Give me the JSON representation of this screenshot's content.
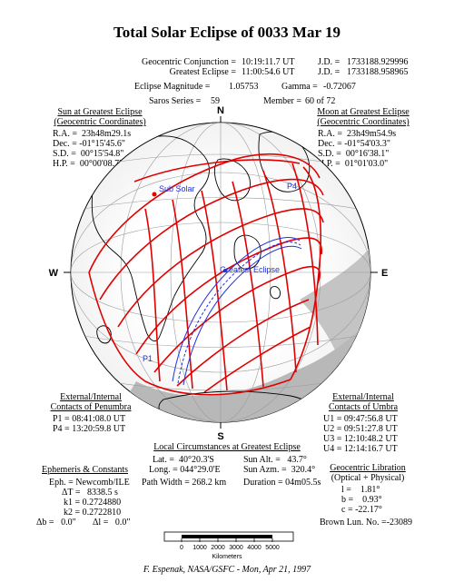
{
  "title": "Total Solar Eclipse of 0033 Mar 19",
  "summary": {
    "geocentric_conjunction_label": "Geocentric Conjunction =",
    "geocentric_conjunction_value": "10:19:11.7 UT",
    "greatest_eclipse_label": "Greatest Eclipse =",
    "greatest_eclipse_value": "11:00:54.6 UT",
    "jd_label": "J.D. =",
    "jd1_value": "1733188.929996",
    "jd2_value": "1733188.958965",
    "magnitude_label": "Eclipse Magnitude =",
    "magnitude_value": "1.05753",
    "gamma_label": "Gamma =",
    "gamma_value": "-0.72067",
    "saros_label": "Saros Series =",
    "saros_value": "59",
    "member_label": "Member =",
    "member_value": "60 of 72"
  },
  "sun": {
    "heading1": "Sun at Greatest Eclipse",
    "heading2": "(Geocentric Coordinates)",
    "ra": "R.A. =  23h48m29.1s",
    "dec": "Dec. = -01°15'45.6\"",
    "sd": "S.D. =  00°15'54.8\"",
    "hp": "H.P. =  00°00'08.7\""
  },
  "moon": {
    "heading1": "Moon at Greatest Eclipse",
    "heading2": "(Geocentric Coordinates)",
    "ra": "R.A. =  23h49m54.9s",
    "dec": "Dec. = -01°54'03.3\"",
    "sd": "S.D. =  00°16'38.1\"",
    "hp": "H.P. =  01°01'03.0\""
  },
  "globe": {
    "north": "N",
    "south": "S",
    "west": "W",
    "east": "E",
    "sub_solar": "Sub Solar",
    "greatest_eclipse": "Greatest Eclipse",
    "p1": "P1",
    "p4": "P4"
  },
  "penumbra": {
    "heading1": "External/Internal",
    "heading2": "Contacts of Penumbra",
    "p1": "P1 = 08:41:08.0 UT",
    "p4": "P4 = 13:20:59.8 UT"
  },
  "umbra": {
    "heading1": "External/Internal",
    "heading2": "Contacts of Umbra",
    "u1": "U1 = 09:47:56.8 UT",
    "u2": "U2 = 09:51:27.8 UT",
    "u3": "U3 = 12:10:48.2 UT",
    "u4": "U4 = 12:14:16.7 UT"
  },
  "local": {
    "heading": "Local Circumstances at Greatest Eclipse",
    "lat": "Lat. =  40°20.3'S",
    "long": "Long. = 044°29.0'E",
    "sun_alt": "Sun Alt. =   43.7°",
    "sun_azm": "Sun Azm. =  320.4°",
    "path_width": "Path Width = 268.2 km",
    "duration": "Duration = 04m05.5s"
  },
  "ephemeris": {
    "heading": "Ephemeris & Constants",
    "eph": "Eph. = Newcomb/ILE",
    "dt": "ΔT =   8338.5 s",
    "k1": "k1 = 0.2724880",
    "k2": "k2 = 0.2722810",
    "db": "Δb =   0.0\"",
    "dl": "Δl =   0.0\""
  },
  "libration": {
    "heading1": "Geocentric Libration",
    "heading2": "(Optical + Physical)",
    "l": "l =    1.81°",
    "b": "b =    0.93°",
    "c": "c = -22.17°",
    "brown": "Brown Lun. No. =-23089"
  },
  "scale": {
    "ticks": [
      "0",
      "1000",
      "2000",
      "3000",
      "4000",
      "5000"
    ],
    "unit": "Kilometers"
  },
  "credit": "F. Espenak, NASA/GSFC - Mon, Apr 21, 1997",
  "colors": {
    "path": "#e00000",
    "greatest": "#2030e0",
    "night": "#b8b8b8"
  }
}
